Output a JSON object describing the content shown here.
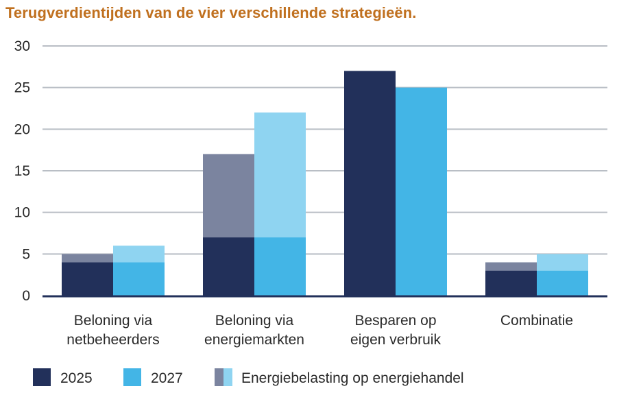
{
  "chart_data": {
    "type": "bar",
    "title": "Terugverdientijden van de vier verschillende strategieën.",
    "xlabel": "",
    "ylabel": "",
    "ylim": [
      0,
      30
    ],
    "yticks": [
      0,
      5,
      10,
      15,
      20,
      25,
      30
    ],
    "grid": true,
    "legend_position": "bottom",
    "categories": [
      [
        "Beloning via",
        "netbeheerders"
      ],
      [
        "Beloning via",
        "energiemarkten"
      ],
      [
        "Besparen op",
        "eigen verbruik"
      ],
      [
        "Combinatie"
      ]
    ],
    "series": [
      {
        "name": "2025",
        "values": [
          4,
          7,
          27,
          3
        ],
        "color": "#22305a"
      },
      {
        "name": "2027",
        "values": [
          4,
          7,
          25,
          3
        ],
        "color": "#43b5e6"
      }
    ],
    "stacked_addition": {
      "name": "Energiebelasting op energiehandel",
      "values_2025": [
        1,
        10,
        0,
        1
      ],
      "values_2027": [
        2,
        15,
        0,
        2
      ],
      "color_2025": "#7b849f",
      "color_2027": "#8fd4f1"
    },
    "gridline_color": "#b9bec5",
    "axis_color": "#22305a"
  }
}
